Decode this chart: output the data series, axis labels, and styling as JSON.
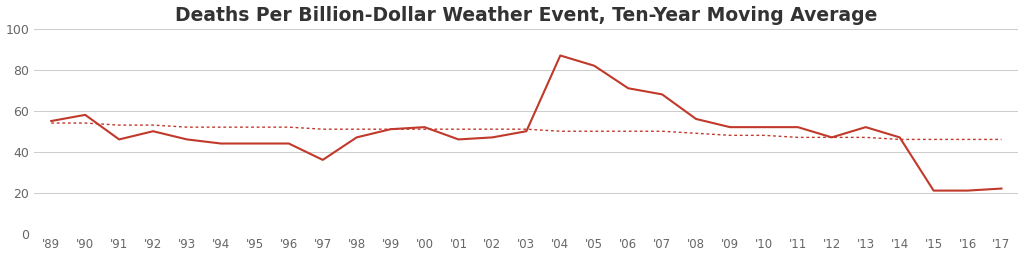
{
  "title": "Deaths Per Billion-Dollar Weather Event, Ten-Year Moving Average",
  "years": [
    "'89",
    "'90",
    "'91",
    "'92",
    "'93",
    "'94",
    "'95",
    "'96",
    "'97",
    "'98",
    "'99",
    "'00",
    "'01",
    "'02",
    "'03",
    "'04",
    "'05",
    "'06",
    "'07",
    "'08",
    "'09",
    "'10",
    "'11",
    "'12",
    "'13",
    "'14",
    "'15",
    "'16",
    "'17"
  ],
  "main_values": [
    55,
    58,
    46,
    50,
    46,
    44,
    44,
    44,
    36,
    47,
    51,
    52,
    46,
    47,
    50,
    87,
    82,
    71,
    68,
    56,
    52,
    52,
    52,
    47,
    52,
    47,
    21,
    21,
    22
  ],
  "trend_values": [
    54,
    54,
    53,
    53,
    52,
    52,
    52,
    52,
    51,
    51,
    51,
    51,
    51,
    51,
    51,
    50,
    50,
    50,
    50,
    49,
    48,
    48,
    47,
    47,
    47,
    46,
    46,
    46,
    46
  ],
  "line_color": "#C0392B",
  "trend_color": "#C0392B",
  "bg_color": "#FFFFFF",
  "ylim": [
    0,
    100
  ],
  "yticks": [
    0,
    20,
    40,
    60,
    80,
    100
  ],
  "title_fontsize": 13.5,
  "grid_color": "#CCCCCC",
  "tick_color": "#666666"
}
